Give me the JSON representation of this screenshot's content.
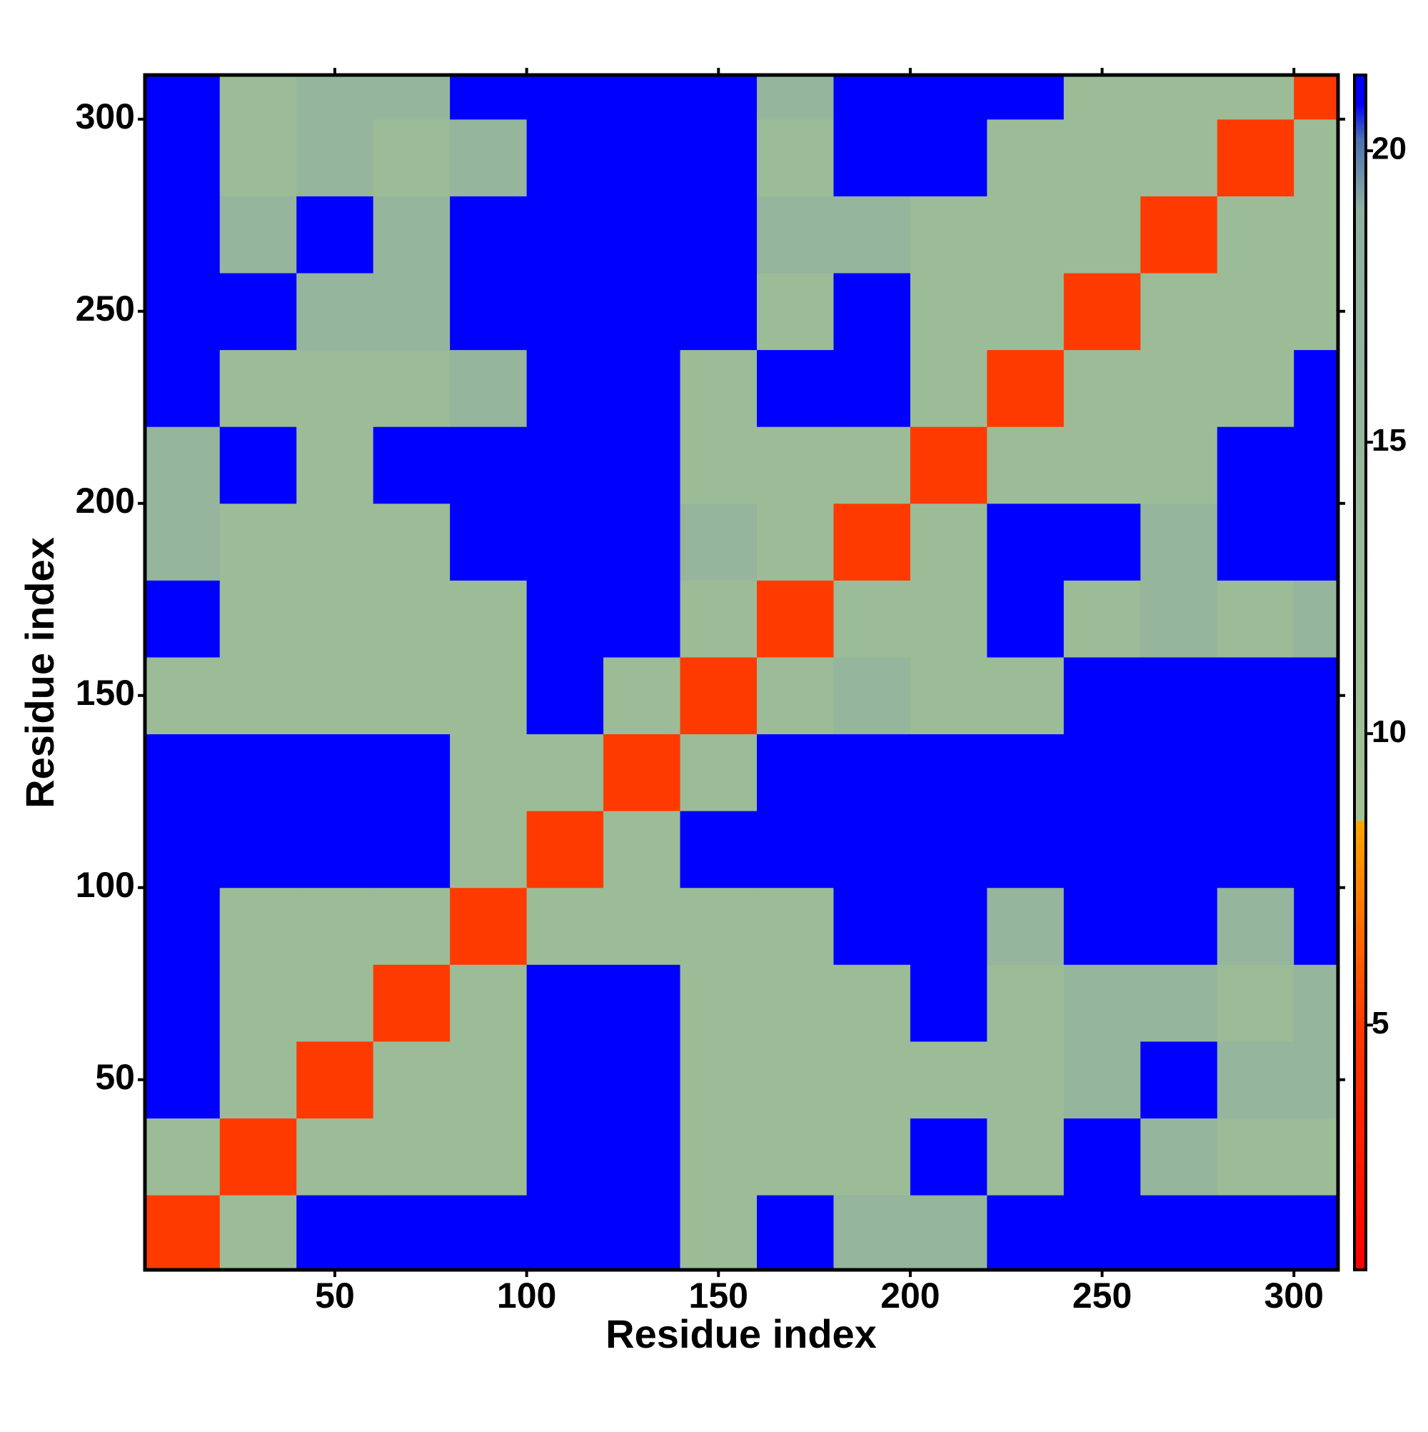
{
  "chart_data": {
    "type": "heatmap",
    "x_label": "Residue index",
    "y_label": "Residue index",
    "x_bins": [
      0.5,
      20,
      40,
      60,
      80,
      100,
      120,
      140,
      160,
      180,
      200,
      220,
      240,
      260,
      280,
      300,
      311.5
    ],
    "y_bins": [
      0.5,
      20,
      40,
      60,
      80,
      100,
      120,
      140,
      160,
      180,
      200,
      220,
      240,
      260,
      280,
      300,
      311.5
    ],
    "values": [
      [
        5,
        12,
        21,
        21,
        21,
        21,
        21,
        12,
        21,
        16,
        16,
        21,
        21,
        21,
        21,
        21
      ],
      [
        12,
        5,
        12,
        12,
        12,
        21,
        21,
        12,
        12,
        12,
        21,
        12,
        21,
        16,
        12,
        12
      ],
      [
        21,
        12,
        5,
        12,
        12,
        21,
        21,
        12,
        12,
        12,
        12,
        12,
        16,
        21,
        16,
        16
      ],
      [
        21,
        12,
        12,
        5,
        12,
        21,
        21,
        12,
        12,
        12,
        21,
        12,
        16,
        16,
        12,
        16
      ],
      [
        21,
        12,
        12,
        12,
        5,
        12,
        12,
        12,
        12,
        21,
        21,
        16,
        21,
        21,
        16,
        21
      ],
      [
        21,
        21,
        21,
        21,
        12,
        5,
        12,
        21,
        21,
        21,
        21,
        21,
        21,
        21,
        21,
        21
      ],
      [
        21,
        21,
        21,
        21,
        12,
        12,
        5,
        12,
        21,
        21,
        21,
        21,
        21,
        21,
        21,
        21
      ],
      [
        12,
        12,
        12,
        12,
        12,
        21,
        12,
        5,
        12,
        16,
        12,
        12,
        21,
        21,
        21,
        21
      ],
      [
        21,
        12,
        12,
        12,
        12,
        21,
        21,
        12,
        5,
        12,
        12,
        21,
        12,
        16,
        12,
        16
      ],
      [
        16,
        12,
        12,
        12,
        21,
        21,
        21,
        16,
        12,
        5,
        12,
        21,
        21,
        16,
        21,
        21
      ],
      [
        16,
        21,
        12,
        21,
        21,
        21,
        21,
        12,
        12,
        12,
        5,
        12,
        12,
        12,
        21,
        21
      ],
      [
        21,
        12,
        12,
        12,
        16,
        21,
        21,
        12,
        21,
        21,
        12,
        5,
        12,
        12,
        12,
        21
      ],
      [
        21,
        21,
        16,
        16,
        21,
        21,
        21,
        21,
        12,
        21,
        12,
        12,
        5,
        12,
        12,
        12
      ],
      [
        21,
        16,
        21,
        16,
        21,
        21,
        21,
        21,
        16,
        16,
        12,
        12,
        12,
        5,
        12,
        12
      ],
      [
        21,
        12,
        16,
        12,
        16,
        21,
        21,
        21,
        12,
        21,
        21,
        12,
        12,
        12,
        5,
        12
      ],
      [
        21,
        12,
        16,
        16,
        21,
        21,
        21,
        21,
        16,
        21,
        21,
        21,
        12,
        12,
        12,
        5
      ]
    ],
    "xlim": [
      0.5,
      311.5
    ],
    "ylim": [
      0.5,
      311.5
    ],
    "xticks": [
      50,
      100,
      150,
      200,
      250,
      300
    ],
    "yticks": [
      50,
      100,
      150,
      200,
      250,
      300
    ],
    "clim": [
      0.8,
      21.3
    ],
    "cticks": [
      5,
      10,
      15,
      20
    ],
    "colorscale": [
      [
        0.8,
        "#ff0000"
      ],
      [
        5,
        "#ff3a00"
      ],
      [
        8.5,
        "#ffa500"
      ],
      [
        8.5,
        "#a3c293"
      ],
      [
        19,
        "#8fb0a0"
      ],
      [
        20.2,
        "#4a70b0"
      ],
      [
        20.8,
        "#0000ff"
      ],
      [
        21.3,
        "#0000ff"
      ]
    ]
  }
}
